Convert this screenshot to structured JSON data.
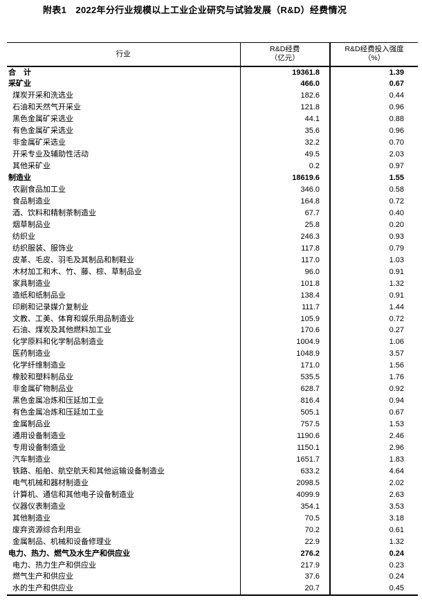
{
  "page": {
    "title": "附表1　2022年分行业规模以上工业企业研究与试验发展（R&D）经费情况"
  },
  "colors": {
    "text": "#000000",
    "background": "#ffffff",
    "border": "#000000"
  },
  "table": {
    "columns": {
      "industry": "行业",
      "expenditure_line1": "R&D经费",
      "expenditure_line2": "（亿元）",
      "intensity_line1": "R&D经费投入强度",
      "intensity_line2": "（%）"
    },
    "rows": [
      {
        "label": "合　计",
        "expenditure": "19361.8",
        "intensity": "1.39",
        "bold": true,
        "indent": 0
      },
      {
        "label": "采矿业",
        "expenditure": "466.0",
        "intensity": "0.67",
        "bold": true,
        "indent": 0
      },
      {
        "label": "煤炭开采和洗选业",
        "expenditure": "182.6",
        "intensity": "0.44",
        "bold": false,
        "indent": 1
      },
      {
        "label": "石油和天然气开采业",
        "expenditure": "121.8",
        "intensity": "0.96",
        "bold": false,
        "indent": 1
      },
      {
        "label": "黑色金属矿采选业",
        "expenditure": "44.1",
        "intensity": "0.88",
        "bold": false,
        "indent": 1
      },
      {
        "label": "有色金属矿采选业",
        "expenditure": "35.6",
        "intensity": "0.96",
        "bold": false,
        "indent": 1
      },
      {
        "label": "非金属矿采选业",
        "expenditure": "32.2",
        "intensity": "0.70",
        "bold": false,
        "indent": 1
      },
      {
        "label": "开采专业及辅助性活动",
        "expenditure": "49.5",
        "intensity": "2.03",
        "bold": false,
        "indent": 1
      },
      {
        "label": "其他采矿业",
        "expenditure": "0.2",
        "intensity": "0.97",
        "bold": false,
        "indent": 1
      },
      {
        "label": "制造业",
        "expenditure": "18619.6",
        "intensity": "1.55",
        "bold": true,
        "indent": 0
      },
      {
        "label": "农副食品加工业",
        "expenditure": "346.0",
        "intensity": "0.58",
        "bold": false,
        "indent": 1
      },
      {
        "label": "食品制造业",
        "expenditure": "164.8",
        "intensity": "0.72",
        "bold": false,
        "indent": 1
      },
      {
        "label": "酒、饮料和精制茶制造业",
        "expenditure": "67.7",
        "intensity": "0.40",
        "bold": false,
        "indent": 1
      },
      {
        "label": "烟草制品业",
        "expenditure": "25.8",
        "intensity": "0.20",
        "bold": false,
        "indent": 1
      },
      {
        "label": "纺织业",
        "expenditure": "246.3",
        "intensity": "0.93",
        "bold": false,
        "indent": 1
      },
      {
        "label": "纺织服装、服饰业",
        "expenditure": "117.8",
        "intensity": "0.79",
        "bold": false,
        "indent": 1
      },
      {
        "label": "皮革、毛皮、羽毛及其制品和制鞋业",
        "expenditure": "117.0",
        "intensity": "1.03",
        "bold": false,
        "indent": 1
      },
      {
        "label": "木材加工和木、竹、藤、棕、草制品业",
        "expenditure": "96.0",
        "intensity": "0.91",
        "bold": false,
        "indent": 1
      },
      {
        "label": "家具制造业",
        "expenditure": "101.8",
        "intensity": "1.32",
        "bold": false,
        "indent": 1
      },
      {
        "label": "造纸和纸制品业",
        "expenditure": "138.4",
        "intensity": "0.91",
        "bold": false,
        "indent": 1
      },
      {
        "label": "印刷和记录媒介复制业",
        "expenditure": "111.7",
        "intensity": "1.44",
        "bold": false,
        "indent": 1
      },
      {
        "label": "文教、工美、体育和娱乐用品制造业",
        "expenditure": "105.9",
        "intensity": "0.72",
        "bold": false,
        "indent": 1
      },
      {
        "label": "石油、煤炭及其他燃料加工业",
        "expenditure": "170.6",
        "intensity": "0.27",
        "bold": false,
        "indent": 1
      },
      {
        "label": "化学原料和化学制品制造业",
        "expenditure": "1004.9",
        "intensity": "1.06",
        "bold": false,
        "indent": 1
      },
      {
        "label": "医药制造业",
        "expenditure": "1048.9",
        "intensity": "3.57",
        "bold": false,
        "indent": 1
      },
      {
        "label": "化学纤维制造业",
        "expenditure": "171.0",
        "intensity": "1.56",
        "bold": false,
        "indent": 1
      },
      {
        "label": "橡胶和塑料制品业",
        "expenditure": "535.5",
        "intensity": "1.76",
        "bold": false,
        "indent": 1
      },
      {
        "label": "非金属矿物制品业",
        "expenditure": "628.7",
        "intensity": "0.92",
        "bold": false,
        "indent": 1
      },
      {
        "label": "黑色金属冶炼和压延加工业",
        "expenditure": "816.4",
        "intensity": "0.94",
        "bold": false,
        "indent": 1
      },
      {
        "label": "有色金属冶炼和压延加工业",
        "expenditure": "505.1",
        "intensity": "0.67",
        "bold": false,
        "indent": 1
      },
      {
        "label": "金属制品业",
        "expenditure": "757.5",
        "intensity": "1.53",
        "bold": false,
        "indent": 1
      },
      {
        "label": "通用设备制造业",
        "expenditure": "1190.6",
        "intensity": "2.46",
        "bold": false,
        "indent": 1
      },
      {
        "label": "专用设备制造业",
        "expenditure": "1150.1",
        "intensity": "2.96",
        "bold": false,
        "indent": 1
      },
      {
        "label": "汽车制造业",
        "expenditure": "1651.7",
        "intensity": "1.83",
        "bold": false,
        "indent": 1
      },
      {
        "label": "铁路、船舶、航空航天和其他运输设备制造业",
        "expenditure": "633.2",
        "intensity": "4.64",
        "bold": false,
        "indent": 1
      },
      {
        "label": "电气机械和器材制造业",
        "expenditure": "2098.5",
        "intensity": "2.02",
        "bold": false,
        "indent": 1
      },
      {
        "label": "计算机、通信和其他电子设备制造业",
        "expenditure": "4099.9",
        "intensity": "2.63",
        "bold": false,
        "indent": 1
      },
      {
        "label": "仪器仪表制造业",
        "expenditure": "354.1",
        "intensity": "3.53",
        "bold": false,
        "indent": 1
      },
      {
        "label": "其他制造业",
        "expenditure": "70.5",
        "intensity": "3.18",
        "bold": false,
        "indent": 1
      },
      {
        "label": "废弃资源综合利用业",
        "expenditure": "70.2",
        "intensity": "0.61",
        "bold": false,
        "indent": 1
      },
      {
        "label": "金属制品、机械和设备修理业",
        "expenditure": "22.9",
        "intensity": "1.32",
        "bold": false,
        "indent": 1
      },
      {
        "label": "电力、热力、燃气及水生产和供应业",
        "expenditure": "276.2",
        "intensity": "0.24",
        "bold": true,
        "indent": 0
      },
      {
        "label": "电力、热力生产和供应业",
        "expenditure": "217.9",
        "intensity": "0.23",
        "bold": false,
        "indent": 1
      },
      {
        "label": "燃气生产和供应业",
        "expenditure": "37.6",
        "intensity": "0.24",
        "bold": false,
        "indent": 1
      },
      {
        "label": "水的生产和供应业",
        "expenditure": "20.7",
        "intensity": "0.45",
        "bold": false,
        "indent": 1
      }
    ]
  }
}
